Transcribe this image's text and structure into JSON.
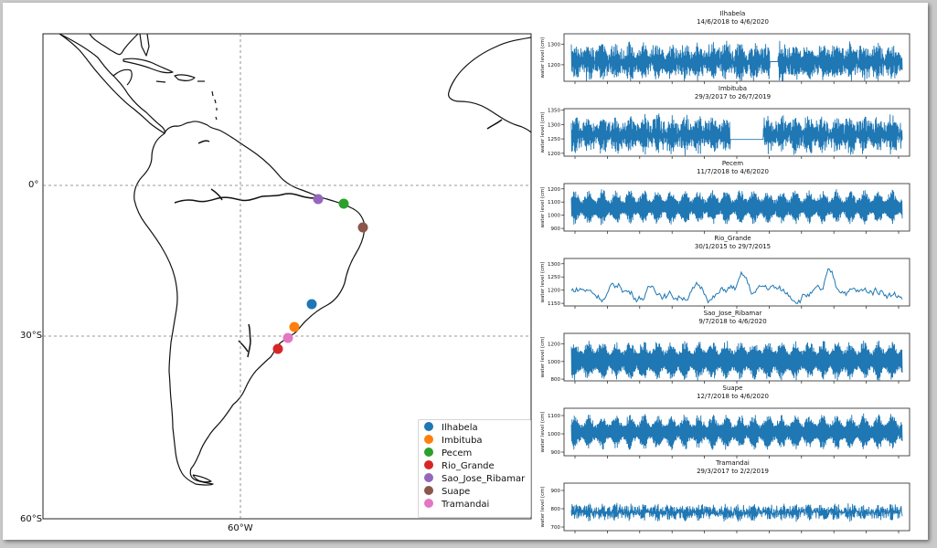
{
  "map": {
    "lat_labels": [
      "0°",
      "30°S",
      "60°S"
    ],
    "lon_labels": [
      "60°W"
    ],
    "stations": [
      {
        "name": "Ilhabela",
        "color": "#1f77b4"
      },
      {
        "name": "Imbituba",
        "color": "#ff7f0e"
      },
      {
        "name": "Pecem",
        "color": "#2ca02c"
      },
      {
        "name": "Rio_Grande",
        "color": "#d62728"
      },
      {
        "name": "Sao_Jose_Ribamar",
        "color": "#9467bd"
      },
      {
        "name": "Suape",
        "color": "#8c564b"
      },
      {
        "name": "Tramandai",
        "color": "#e377c2"
      }
    ]
  },
  "chart_data": [
    {
      "type": "line",
      "title": "Ilhabela",
      "subtitle": "14/6/2018 to 4/6/2020",
      "ylabel": "water level (cm)",
      "yticks": [
        1300,
        1200
      ],
      "ylim": [
        1120,
        1350
      ],
      "y_mean": 1215,
      "amp_base": 65,
      "amp_mod": 18,
      "noise": 25,
      "gaps": [
        [
          0.6,
          0.625
        ]
      ],
      "color": "#1f77b4"
    },
    {
      "type": "line",
      "title": "Imbituba",
      "subtitle": "29/3/2017 to 26/7/2019",
      "ylabel": "water level (cm)",
      "yticks": [
        1350,
        1300,
        1250,
        1200
      ],
      "ylim": [
        1190,
        1355
      ],
      "y_mean": 1265,
      "amp_base": 45,
      "amp_mod": 14,
      "noise": 20,
      "gaps": [
        [
          0.48,
          0.58
        ]
      ],
      "gap_value": 1248,
      "color": "#1f77b4"
    },
    {
      "type": "line",
      "title": "Pecem",
      "subtitle": "11/7/2018 to 4/6/2020",
      "ylabel": "water level (cm)",
      "yticks": [
        1200,
        1100,
        1000,
        900
      ],
      "ylim": [
        880,
        1240
      ],
      "y_mean": 1060,
      "amp_base": 95,
      "amp_mod": 40,
      "noise": 8,
      "gaps": [],
      "color": "#1f77b4"
    },
    {
      "type": "line",
      "title": "Rio_Grande",
      "subtitle": "30/1/2015 to 29/7/2015",
      "ylabel": "water level (cm)",
      "yticks": [
        1300,
        1250,
        1200,
        1150
      ],
      "ylim": [
        1140,
        1320
      ],
      "y_mean": 1195,
      "amp_base": 12,
      "amp_mod": 6,
      "noise": 6,
      "gaps": [],
      "smooth": true,
      "color": "#1f77b4"
    },
    {
      "type": "line",
      "title": "Sao_Jose_Ribamar",
      "subtitle": "9/7/2018 to 4/6/2020",
      "ylabel": "water level (cm)",
      "yticks": [
        1200,
        1000,
        800
      ],
      "ylim": [
        780,
        1320
      ],
      "y_mean": 1010,
      "amp_base": 170,
      "amp_mod": 60,
      "noise": 10,
      "gaps": [],
      "color": "#1f77b4"
    },
    {
      "type": "line",
      "title": "Suape",
      "subtitle": "12/7/2018 to 4/6/2020",
      "ylabel": "water level (cm)",
      "yticks": [
        1100,
        1000,
        900
      ],
      "ylim": [
        880,
        1140
      ],
      "y_mean": 1010,
      "amp_base": 70,
      "amp_mod": 30,
      "noise": 6,
      "gaps": [],
      "color": "#1f77b4"
    },
    {
      "type": "line",
      "title": "Tramandai",
      "subtitle": "29/3/2017 to 2/2/2019",
      "ylabel": "water level (cm)",
      "yticks": [
        900,
        800,
        700
      ],
      "ylim": [
        680,
        940
      ],
      "y_mean": 780,
      "amp_base": 25,
      "amp_mod": 10,
      "noise": 22,
      "gaps": [],
      "color": "#1f77b4"
    }
  ]
}
